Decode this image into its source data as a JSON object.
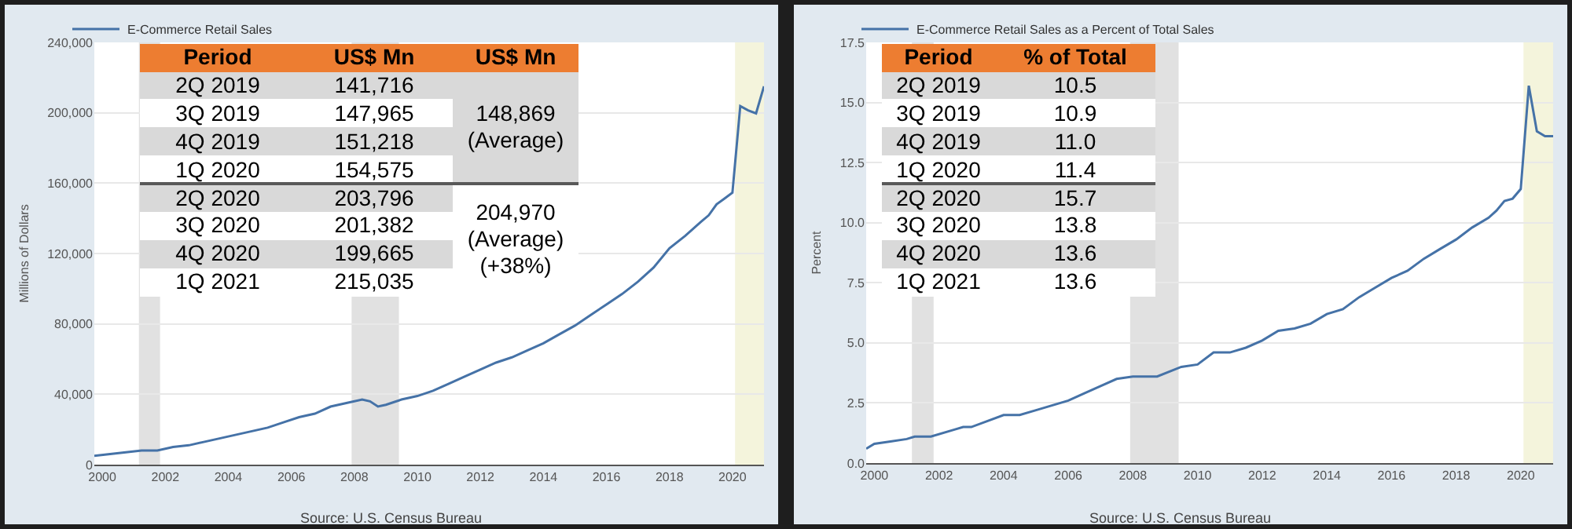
{
  "chart_data": [
    {
      "type": "line",
      "ylabel": "Millions of Dollars",
      "x": [
        "1999-10-01",
        "2000-04-01",
        "2000-10-01",
        "2001-04-01",
        "2001-10-01",
        "2002-04-01",
        "2002-10-01",
        "2003-04-01",
        "2003-10-01",
        "2004-04-01",
        "2004-10-01",
        "2005-04-01",
        "2005-10-01",
        "2006-04-01",
        "2006-10-01",
        "2007-04-01",
        "2007-10-01",
        "2008-04-01",
        "2008-07-01",
        "2008-10-01",
        "2009-01-01",
        "2009-07-01",
        "2010-01-01",
        "2010-07-01",
        "2011-01-01",
        "2011-07-01",
        "2012-01-01",
        "2012-07-01",
        "2013-01-01",
        "2013-07-01",
        "2014-01-01",
        "2014-07-01",
        "2015-01-01",
        "2015-07-01",
        "2016-01-01",
        "2016-07-01",
        "2017-01-01",
        "2017-07-01",
        "2018-01-01",
        "2018-07-01",
        "2019-01-01",
        "2019-04-01",
        "2019-07-01",
        "2019-10-01",
        "2020-01-01",
        "2020-04-01",
        "2020-07-01",
        "2020-10-01",
        "2021-01-01"
      ],
      "series": [
        {
          "name": "E-Commerce Retail Sales",
          "color": "#4572a7",
          "values": [
            5000,
            6000,
            7000,
            8000,
            8000,
            10000,
            11000,
            13000,
            15000,
            17000,
            19000,
            21000,
            24000,
            27000,
            29000,
            33000,
            35000,
            37000,
            36000,
            33000,
            34000,
            37000,
            39000,
            42000,
            46000,
            50000,
            54000,
            58000,
            61000,
            65000,
            69000,
            74000,
            79000,
            85000,
            91000,
            97000,
            104000,
            112000,
            123000,
            130000,
            138000,
            141716,
            147965,
            151218,
            154575,
            203796,
            201382,
            199665,
            215035
          ]
        }
      ],
      "xlim": [
        "1999-10-01",
        "2021-01-01"
      ],
      "xticks": [
        "2000",
        "2002",
        "2004",
        "2006",
        "2008",
        "2010",
        "2012",
        "2014",
        "2016",
        "2018",
        "2020"
      ],
      "ylim": [
        0,
        240000
      ],
      "yticks": [
        0,
        {
          "value": 40000,
          "label": "40,000"
        },
        {
          "value": 80000,
          "label": "80,000"
        },
        {
          "value": 120000,
          "label": "120,000"
        },
        {
          "value": 160000,
          "label": "160,000"
        },
        {
          "value": 200000,
          "label": "200,000"
        },
        {
          "value": 240000,
          "label": "240,000"
        }
      ],
      "grid": "y",
      "legend": "top left",
      "bands": [
        {
          "axis": "x",
          "from": "2001-03-01",
          "to": "2001-11-01",
          "color": "#e1e1e1"
        },
        {
          "axis": "x",
          "from": "2007-12-01",
          "to": "2009-06-01",
          "color": "#e1e1e1"
        },
        {
          "axis": "x",
          "from": "2020-02-01",
          "to": "2021-01-01",
          "color": "#f4f4dc"
        }
      ],
      "annotations": [
        "Period",
        "US$ Mn",
        "US$ Mn",
        "2Q 2019",
        "141,716",
        "3Q 2019",
        "147,965",
        "4Q 2019",
        "151,218",
        "1Q 2020",
        "154,575",
        "2Q 2020",
        "203,796",
        "3Q 2020",
        "201,382",
        "4Q 2020",
        "199,665",
        "1Q 2021",
        "215,035",
        "148,869\n(Average)",
        "204,970\n(Average)\n(+38%)",
        "Source: U.S. Census Bureau"
      ]
    },
    {
      "type": "line",
      "ylabel": "Percent",
      "x": [
        "1999-10-01",
        "2000-01-01",
        "2000-07-01",
        "2001-01-01",
        "2001-04-01",
        "2001-10-01",
        "2002-07-01",
        "2002-10-01",
        "2003-01-01",
        "2004-01-01",
        "2004-07-01",
        "2005-01-01",
        "2006-01-01",
        "2006-07-01",
        "2007-01-01",
        "2007-07-01",
        "2008-01-01",
        "2008-10-01",
        "2009-07-01",
        "2010-01-01",
        "2010-07-01",
        "2011-01-01",
        "2011-07-01",
        "2012-01-01",
        "2012-07-01",
        "2013-01-01",
        "2013-07-01",
        "2014-01-01",
        "2014-07-01",
        "2015-01-01",
        "2015-07-01",
        "2016-01-01",
        "2016-07-01",
        "2017-01-01",
        "2017-07-01",
        "2018-01-01",
        "2018-07-01",
        "2019-01-01",
        "2019-04-01",
        "2019-07-01",
        "2019-10-01",
        "2020-01-01",
        "2020-04-01",
        "2020-07-01",
        "2020-10-01",
        "2021-01-01"
      ],
      "series": [
        {
          "name": "E-Commerce Retail Sales as a Percent of Total Sales",
          "color": "#4572a7",
          "values": [
            0.6,
            0.8,
            0.9,
            1.0,
            1.1,
            1.1,
            1.4,
            1.5,
            1.5,
            2.0,
            2.0,
            2.2,
            2.6,
            2.9,
            3.2,
            3.5,
            3.6,
            3.6,
            4.0,
            4.1,
            4.6,
            4.6,
            4.8,
            5.1,
            5.5,
            5.6,
            5.8,
            6.2,
            6.4,
            6.9,
            7.3,
            7.7,
            8.0,
            8.5,
            8.9,
            9.3,
            9.8,
            10.2,
            10.5,
            10.9,
            11.0,
            11.4,
            15.7,
            13.8,
            13.6,
            13.6
          ]
        }
      ],
      "xlim": [
        "1999-10-01",
        "2021-01-01"
      ],
      "xticks": [
        "2000",
        "2002",
        "2004",
        "2006",
        "2008",
        "2010",
        "2012",
        "2014",
        "2016",
        "2018",
        "2020"
      ],
      "ylim": [
        0,
        17.5
      ],
      "yticks": [
        {
          "value": 0,
          "label": "0.0"
        },
        2.5,
        {
          "value": 5,
          "label": "5.0"
        },
        7.5,
        {
          "value": 10,
          "label": "10.0"
        },
        12.5,
        {
          "value": 15,
          "label": "15.0"
        },
        17.5
      ],
      "grid": "y",
      "legend": "top left",
      "bands": [
        {
          "axis": "x",
          "from": "2001-03-01",
          "to": "2001-11-01",
          "color": "#e1e1e1"
        },
        {
          "axis": "x",
          "from": "2007-12-01",
          "to": "2009-06-01",
          "color": "#e1e1e1"
        },
        {
          "axis": "x",
          "from": "2020-02-01",
          "to": "2021-01-01",
          "color": "#f4f4dc"
        }
      ],
      "annotations": [
        "Period",
        "% of Total",
        "2Q 2019",
        "10.5",
        "3Q 2019",
        "10.9",
        "4Q 2019",
        "11.0",
        "1Q 2020",
        "11.4",
        "2Q 2020",
        "15.7",
        "3Q 2020",
        "13.8",
        "4Q 2020",
        "13.6",
        "1Q 2021",
        "13.6",
        "Source: U.S. Census Bureau"
      ]
    }
  ]
}
